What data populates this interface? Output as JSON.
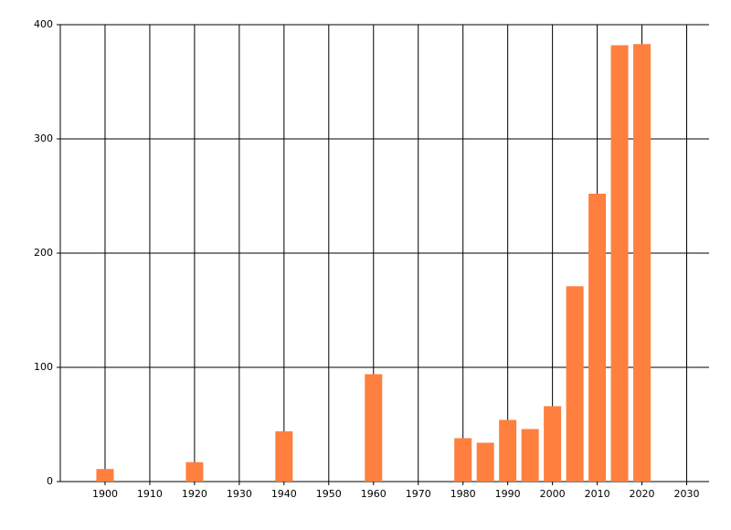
{
  "chart_data": {
    "type": "bar",
    "x": [
      1900,
      1920,
      1940,
      1960,
      1980,
      1985,
      1990,
      1995,
      2000,
      2005,
      2010,
      2015,
      2020
    ],
    "values": [
      11,
      17,
      44,
      94,
      38,
      34,
      54,
      46,
      66,
      171,
      252,
      382,
      383
    ],
    "color": "#ff7f3f",
    "xlim": [
      1890,
      2035
    ],
    "xticks": [
      1900,
      1910,
      1920,
      1930,
      1940,
      1950,
      1960,
      1970,
      1980,
      1990,
      2000,
      2010,
      2020,
      2030
    ],
    "ylim": [
      0,
      400
    ],
    "yticks": [
      0,
      100,
      200,
      300,
      400
    ],
    "grid": true
  }
}
